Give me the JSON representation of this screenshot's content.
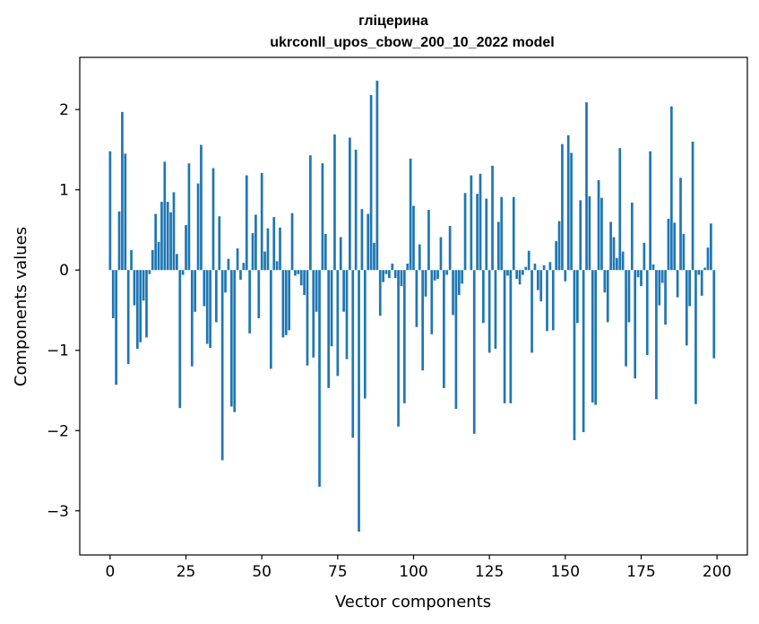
{
  "chart_data": {
    "type": "bar",
    "title": "гліцерина",
    "subtitle": "ukrconll_upos_cbow_200_10_2022 model",
    "xlabel": "Vector components",
    "ylabel": "Components values",
    "xlim": [
      -10,
      210
    ],
    "ylim": [
      -3.55,
      2.65
    ],
    "xticks": [
      0,
      25,
      50,
      75,
      100,
      125,
      150,
      175,
      200
    ],
    "xtick_labels": [
      "0",
      "25",
      "50",
      "75",
      "100",
      "125",
      "150",
      "175",
      "200"
    ],
    "yticks": [
      -3,
      -2,
      -1,
      0,
      1,
      2
    ],
    "ytick_labels": [
      "−3",
      "−2",
      "−1",
      "0",
      "1",
      "2"
    ],
    "bar_color": "#1f77b4",
    "x": [
      0,
      1,
      2,
      3,
      4,
      5,
      6,
      7,
      8,
      9,
      10,
      11,
      12,
      13,
      14,
      15,
      16,
      17,
      18,
      19,
      20,
      21,
      22,
      23,
      24,
      25,
      26,
      27,
      28,
      29,
      30,
      31,
      32,
      33,
      34,
      35,
      36,
      37,
      38,
      39,
      40,
      41,
      42,
      43,
      44,
      45,
      46,
      47,
      48,
      49,
      50,
      51,
      52,
      53,
      54,
      55,
      56,
      57,
      58,
      59,
      60,
      61,
      62,
      63,
      64,
      65,
      66,
      67,
      68,
      69,
      70,
      71,
      72,
      73,
      74,
      75,
      76,
      77,
      78,
      79,
      80,
      81,
      82,
      83,
      84,
      85,
      86,
      87,
      88,
      89,
      90,
      91,
      92,
      93,
      94,
      95,
      96,
      97,
      98,
      99,
      100,
      101,
      102,
      103,
      104,
      105,
      106,
      107,
      108,
      109,
      110,
      111,
      112,
      113,
      114,
      115,
      116,
      117,
      118,
      119,
      120,
      121,
      122,
      123,
      124,
      125,
      126,
      127,
      128,
      129,
      130,
      131,
      132,
      133,
      134,
      135,
      136,
      137,
      138,
      139,
      140,
      141,
      142,
      143,
      144,
      145,
      146,
      147,
      148,
      149,
      150,
      151,
      152,
      153,
      154,
      155,
      156,
      157,
      158,
      159,
      160,
      161,
      162,
      163,
      164,
      165,
      166,
      167,
      168,
      169,
      170,
      171,
      172,
      173,
      174,
      175,
      176,
      177,
      178,
      179,
      180,
      181,
      182,
      183,
      184,
      185,
      186,
      187,
      188,
      189,
      190,
      191,
      192,
      193,
      194,
      195,
      196,
      197,
      198,
      199
    ],
    "values": [
      1.48,
      -0.6,
      -1.43,
      0.73,
      1.97,
      1.45,
      -1.17,
      0.25,
      -0.44,
      -0.98,
      -0.9,
      -0.38,
      -0.84,
      -0.05,
      0.25,
      0.7,
      0.35,
      0.85,
      1.35,
      0.85,
      0.72,
      0.97,
      0.2,
      -1.72,
      -0.06,
      0.56,
      1.33,
      -1.2,
      -0.52,
      1.08,
      1.56,
      -0.45,
      -0.92,
      -0.97,
      1.27,
      -0.65,
      0.67,
      -2.37,
      -0.28,
      0.14,
      -1.7,
      -1.77,
      0.27,
      -0.12,
      0.09,
      1.18,
      -0.79,
      0.46,
      0.69,
      -0.6,
      1.21,
      0.23,
      0.52,
      -1.23,
      0.66,
      0.11,
      0.53,
      -0.84,
      -0.81,
      -0.75,
      0.71,
      -0.07,
      -0.05,
      -0.19,
      -0.31,
      -1.19,
      1.43,
      -1.09,
      -0.52,
      -2.7,
      1.33,
      0.45,
      -1.47,
      -0.95,
      1.69,
      -1.32,
      0.41,
      -0.52,
      -1.11,
      1.65,
      -2.09,
      1.5,
      -3.26,
      0.76,
      -1.6,
      0.7,
      2.18,
      0.34,
      2.36,
      -0.57,
      -0.15,
      -0.05,
      -0.1,
      0.08,
      -0.1,
      -1.95,
      -0.2,
      -1.66,
      0.08,
      1.39,
      0.8,
      -0.71,
      0.32,
      -1.25,
      -0.33,
      0.75,
      -0.8,
      -0.13,
      -0.11,
      0.41,
      -1.47,
      -0.06,
      0.55,
      -0.56,
      -1.73,
      -0.31,
      -0.17,
      0.96,
      0.0,
      1.18,
      -2.04,
      0.95,
      1.2,
      -0.66,
      0.89,
      -1.03,
      1.3,
      -0.98,
      0.6,
      0.91,
      -1.66,
      -0.07,
      -1.66,
      0.91,
      -0.11,
      -0.18,
      -0.06,
      0.04,
      0.24,
      -1.03,
      0.08,
      -0.25,
      -0.39,
      0.06,
      -0.76,
      0.1,
      -0.75,
      0.36,
      0.61,
      1.57,
      -0.14,
      1.68,
      1.46,
      -2.12,
      -0.66,
      0.87,
      -2.02,
      2.09,
      0.92,
      -1.65,
      -1.68,
      1.12,
      0.9,
      -0.28,
      -0.65,
      0.6,
      0.41,
      0.15,
      1.52,
      0.23,
      -1.2,
      -0.65,
      0.84,
      -1.35,
      -0.09,
      -0.2,
      0.34,
      -1.06,
      1.48,
      0.07,
      -1.61,
      -0.44,
      -0.16,
      -0.68,
      0.64,
      2.04,
      0.59,
      -0.34,
      1.15,
      0.45,
      -0.94,
      -0.45,
      1.6,
      -1.67,
      -0.06,
      -0.32,
      0.03,
      0.28,
      0.58,
      -1.1
    ]
  }
}
